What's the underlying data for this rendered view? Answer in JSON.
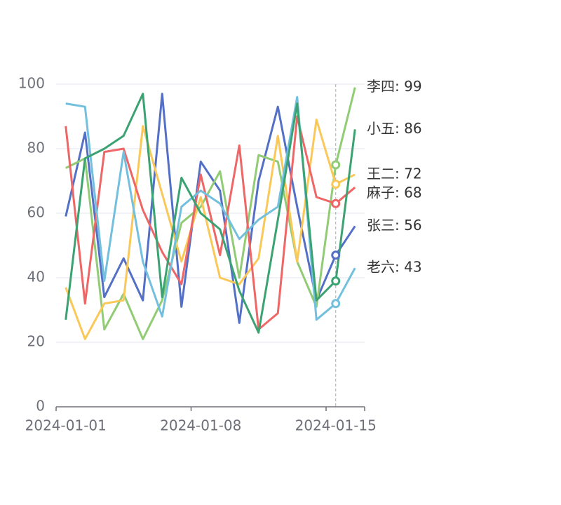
{
  "chart_data": {
    "type": "line",
    "categories": [
      "2024-01-01",
      "2024-01-02",
      "2024-01-03",
      "2024-01-04",
      "2024-01-05",
      "2024-01-06",
      "2024-01-07",
      "2024-01-08",
      "2024-01-09",
      "2024-01-10",
      "2024-01-11",
      "2024-01-12",
      "2024-01-13",
      "2024-01-14",
      "2024-01-15",
      "2024-01-16"
    ],
    "label_interval": 7,
    "tooltip_x": "2024-01-15",
    "ylim": [
      0,
      100
    ],
    "yticks": [
      0,
      20,
      40,
      60,
      80,
      100
    ],
    "grid": true,
    "series": [
      {
        "name": "张三",
        "color": "#5470c6",
        "end_label": "张三: 56",
        "values": [
          59,
          85,
          34,
          46,
          33,
          97,
          31,
          76,
          67,
          26,
          70,
          93,
          62,
          33,
          47,
          56
        ]
      },
      {
        "name": "李四",
        "color": "#91cc75",
        "end_label": "李四: 99",
        "values": [
          74,
          77,
          24,
          35,
          21,
          33,
          57,
          62,
          73,
          40,
          78,
          76,
          45,
          31,
          75,
          99
        ]
      },
      {
        "name": "王二",
        "color": "#fac858",
        "end_label": "王二: 72",
        "values": [
          37,
          21,
          32,
          33,
          87,
          66,
          45,
          65,
          40,
          38,
          46,
          84,
          45,
          89,
          69,
          72
        ]
      },
      {
        "name": "麻子",
        "color": "#ee6666",
        "end_label": "麻子: 68",
        "values": [
          87,
          32,
          79,
          80,
          61,
          48,
          38,
          72,
          47,
          81,
          24,
          29,
          90,
          65,
          63,
          68
        ]
      },
      {
        "name": "老六",
        "color": "#73c0de",
        "end_label": "老六: 43",
        "values": [
          94,
          93,
          39,
          79,
          45,
          28,
          62,
          67,
          63,
          52,
          58,
          62,
          96,
          27,
          32,
          43
        ]
      },
      {
        "name": "小五",
        "color": "#3ba272",
        "end_label": "小五: 86",
        "values": [
          27,
          77,
          80,
          84,
          97,
          34,
          71,
          60,
          55,
          36,
          23,
          58,
          94,
          33,
          39,
          86
        ]
      }
    ]
  }
}
